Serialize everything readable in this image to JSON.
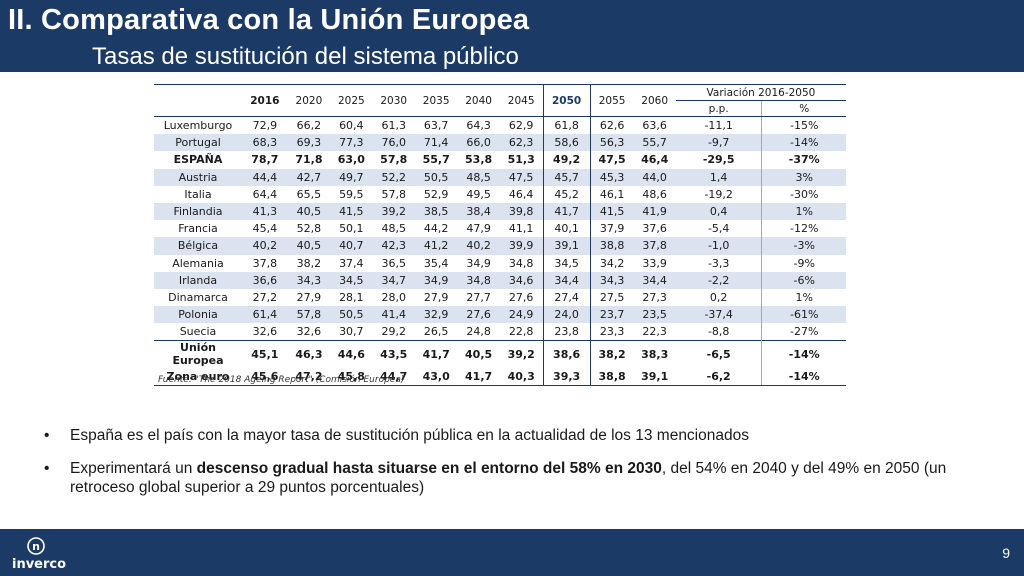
{
  "header": {
    "title": "II. Comparativa con la Unión Europea",
    "subtitle": "Tasas de sustitución del sistema público"
  },
  "table": {
    "years": [
      "2016",
      "2020",
      "2025",
      "2030",
      "2035",
      "2040",
      "2045",
      "2050",
      "2055",
      "2060"
    ],
    "variation_label": "Variación 2016-2050",
    "variation_units": [
      "p.p.",
      "%"
    ],
    "rows": [
      {
        "country": "Luxemburgo",
        "values": [
          "72,9",
          "66,2",
          "60,4",
          "61,3",
          "63,7",
          "64,3",
          "62,9",
          "61,8",
          "62,6",
          "63,6"
        ],
        "pp": "-11,1",
        "pct": "-15%"
      },
      {
        "country": "Portugal",
        "values": [
          "68,3",
          "69,3",
          "77,3",
          "76,0",
          "71,4",
          "66,0",
          "62,3",
          "58,6",
          "56,3",
          "55,7"
        ],
        "pp": "-9,7",
        "pct": "-14%"
      },
      {
        "country": "ESPAÑA",
        "values": [
          "78,7",
          "71,8",
          "63,0",
          "57,8",
          "55,7",
          "53,8",
          "51,3",
          "49,2",
          "47,5",
          "46,4"
        ],
        "pp": "-29,5",
        "pct": "-37%"
      },
      {
        "country": "Austria",
        "values": [
          "44,4",
          "42,7",
          "49,7",
          "52,2",
          "50,5",
          "48,5",
          "47,5",
          "45,7",
          "45,3",
          "44,0"
        ],
        "pp": "1,4",
        "pct": "3%"
      },
      {
        "country": "Italia",
        "values": [
          "64,4",
          "65,5",
          "59,5",
          "57,8",
          "52,9",
          "49,5",
          "46,4",
          "45,2",
          "46,1",
          "48,6"
        ],
        "pp": "-19,2",
        "pct": "-30%"
      },
      {
        "country": "Finlandia",
        "values": [
          "41,3",
          "40,5",
          "41,5",
          "39,2",
          "38,5",
          "38,4",
          "39,8",
          "41,7",
          "41,5",
          "41,9"
        ],
        "pp": "0,4",
        "pct": "1%"
      },
      {
        "country": "Francia",
        "values": [
          "45,4",
          "52,8",
          "50,1",
          "48,5",
          "44,2",
          "47,9",
          "41,1",
          "40,1",
          "37,9",
          "37,6"
        ],
        "pp": "-5,4",
        "pct": "-12%"
      },
      {
        "country": "Bélgica",
        "values": [
          "40,2",
          "40,5",
          "40,7",
          "42,3",
          "41,2",
          "40,2",
          "39,9",
          "39,1",
          "38,8",
          "37,8"
        ],
        "pp": "-1,0",
        "pct": "-3%"
      },
      {
        "country": "Alemania",
        "values": [
          "37,8",
          "38,2",
          "37,4",
          "36,5",
          "35,4",
          "34,9",
          "34,8",
          "34,5",
          "34,2",
          "33,9"
        ],
        "pp": "-3,3",
        "pct": "-9%"
      },
      {
        "country": "Irlanda",
        "values": [
          "36,6",
          "34,3",
          "34,5",
          "34,7",
          "34,9",
          "34,8",
          "34,6",
          "34,4",
          "34,3",
          "34,4"
        ],
        "pp": "-2,2",
        "pct": "-6%"
      },
      {
        "country": "Dinamarca",
        "values": [
          "27,2",
          "27,9",
          "28,1",
          "28,0",
          "27,9",
          "27,7",
          "27,6",
          "27,4",
          "27,5",
          "27,3"
        ],
        "pp": "0,2",
        "pct": "1%"
      },
      {
        "country": "Polonia",
        "values": [
          "61,4",
          "57,8",
          "50,5",
          "41,4",
          "32,9",
          "27,6",
          "24,9",
          "24,0",
          "23,7",
          "23,5"
        ],
        "pp": "-37,4",
        "pct": "-61%"
      },
      {
        "country": "Suecia",
        "values": [
          "32,6",
          "32,6",
          "30,7",
          "29,2",
          "26,5",
          "24,8",
          "22,8",
          "23,8",
          "23,3",
          "22,3"
        ],
        "pp": "-8,8",
        "pct": "-27%"
      }
    ],
    "totals": [
      {
        "country": "Unión Europea",
        "values": [
          "45,1",
          "46,3",
          "44,6",
          "43,5",
          "41,7",
          "40,5",
          "39,2",
          "38,6",
          "38,2",
          "38,3"
        ],
        "pp": "-6,5",
        "pct": "-14%"
      },
      {
        "country": "Zona euro",
        "values": [
          "45,6",
          "47,2",
          "45,8",
          "44,7",
          "43,0",
          "41,7",
          "40,3",
          "39,3",
          "38,8",
          "39,1"
        ],
        "pp": "-6,2",
        "pct": "-14%"
      }
    ],
    "source": "Fuente: \"The 2018 Ageing Report\" (Comisión Europea)"
  },
  "bullets": [
    {
      "text": "España es el país con la mayor tasa de sustitución pública en la actualidad de los 13 mencionados"
    },
    {
      "before": "Experimentará un ",
      "bold": "descenso gradual hasta situarse en el entorno del 58% en 2030",
      "after": ", del 54% en 2040 y del 49% en 2050 (un retroceso global superior a 29 puntos porcentuales)"
    }
  ],
  "bullet_symbol": "•",
  "footer": {
    "logo_text": "inverco",
    "logo_mark": "n",
    "page_number": "9"
  }
}
